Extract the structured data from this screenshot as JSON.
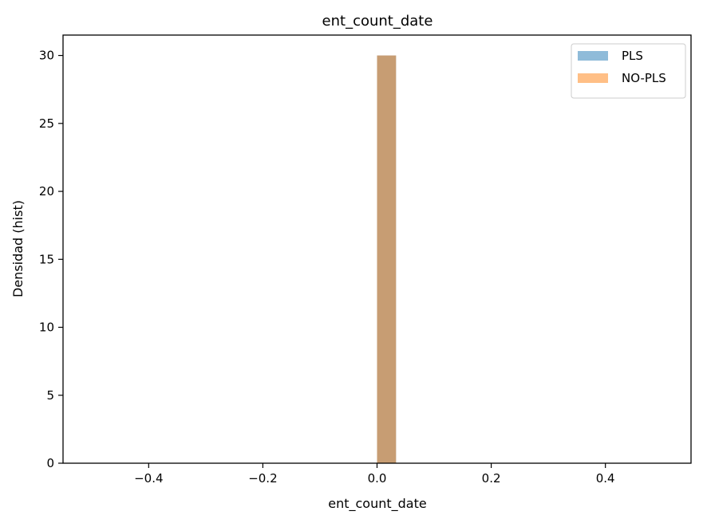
{
  "chart_data": {
    "type": "bar",
    "title": "ent_count_date",
    "xlabel": "ent_count_date",
    "ylabel": "Densidad (hist)",
    "xlim": [
      -0.55,
      0.55
    ],
    "ylim": [
      0,
      31.5
    ],
    "xticks": [
      -0.4,
      -0.2,
      0.0,
      0.2,
      0.4
    ],
    "xtick_labels": [
      "−0.4",
      "−0.2",
      "0.0",
      "0.2",
      "0.4"
    ],
    "yticks": [
      0,
      5,
      10,
      15,
      20,
      25,
      30
    ],
    "ytick_labels": [
      "0",
      "5",
      "10",
      "15",
      "20",
      "25",
      "30"
    ],
    "grid": false,
    "legend": "top-right",
    "series": [
      {
        "name": "PLS",
        "color": "#1f77b4",
        "opacity": 0.5,
        "bins": [
          {
            "x0": 0.0,
            "x1": 0.0333,
            "value": 30
          }
        ]
      },
      {
        "name": "NO-PLS",
        "color": "#ff7f0e",
        "opacity": 0.5,
        "bins": [
          {
            "x0": 0.0,
            "x1": 0.0333,
            "value": 30
          }
        ]
      }
    ]
  }
}
